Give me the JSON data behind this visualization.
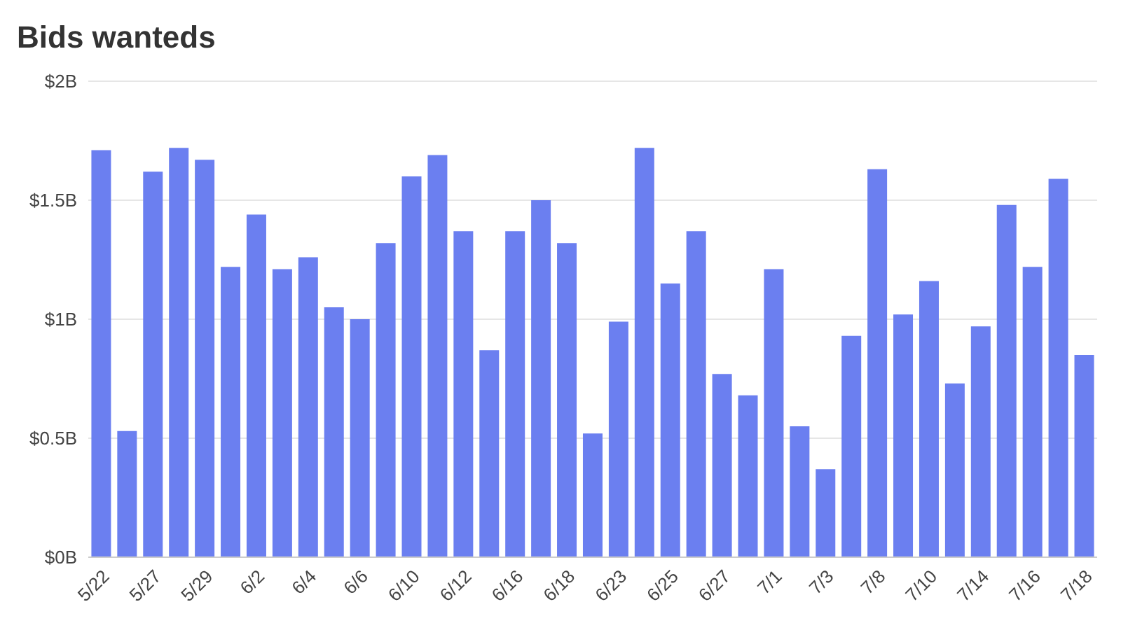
{
  "chart_data": {
    "type": "bar",
    "title": "Bids wanteds",
    "categories": [
      "5/22",
      null,
      "5/27",
      null,
      "5/29",
      null,
      "6/2",
      null,
      "6/4",
      null,
      "6/6",
      null,
      "6/10",
      null,
      "6/12",
      null,
      "6/16",
      null,
      "6/18",
      null,
      "6/23",
      null,
      "6/25",
      null,
      "6/27",
      null,
      "7/1",
      null,
      "7/3",
      null,
      "7/8",
      null,
      "7/10",
      null,
      "7/14",
      null,
      "7/16",
      null,
      "7/18"
    ],
    "values": [
      1.71,
      0.53,
      1.62,
      1.72,
      1.67,
      1.22,
      1.44,
      1.21,
      1.26,
      1.05,
      1.0,
      1.32,
      1.6,
      1.69,
      1.37,
      0.87,
      1.37,
      1.5,
      1.32,
      0.52,
      0.99,
      1.72,
      1.15,
      1.37,
      0.77,
      0.68,
      1.21,
      0.55,
      0.37,
      0.93,
      1.63,
      1.02,
      1.16,
      0.73,
      0.97,
      1.48,
      1.22,
      1.59,
      0.85
    ],
    "color": "#6b7ff0",
    "ylim": [
      0,
      2
    ],
    "yticks": [
      {
        "value": 0,
        "label": "$0B"
      },
      {
        "value": 0.5,
        "label": "$0.5B"
      },
      {
        "value": 1,
        "label": "$1B"
      },
      {
        "value": 1.5,
        "label": "$1.5B"
      },
      {
        "value": 2,
        "label": "$2B"
      }
    ],
    "grid": "y"
  }
}
